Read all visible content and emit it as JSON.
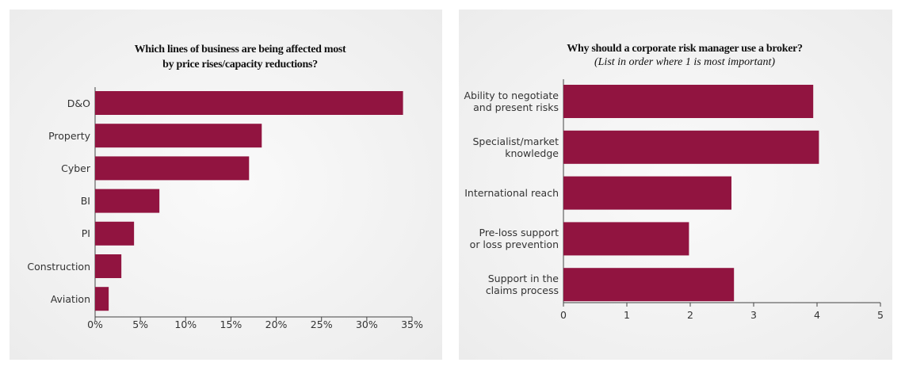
{
  "chart_data": [
    {
      "type": "barh",
      "title": "Which lines of business are being affected most\nby price rises/capacity reductions?",
      "categories": [
        "D&O",
        "Property",
        "Cyber",
        "BI",
        "PI",
        "Construction",
        "Aviation"
      ],
      "values": [
        34,
        18.4,
        17,
        7.1,
        4.3,
        2.9,
        1.5
      ],
      "color": "#911440",
      "xlim": [
        0,
        35
      ],
      "xticks": [
        {
          "value": 0,
          "label": "0%"
        },
        {
          "value": 5,
          "label": "5%"
        },
        {
          "value": 10,
          "label": "10%"
        },
        {
          "value": 15,
          "label": "15%"
        },
        {
          "value": 20,
          "label": "20%"
        },
        {
          "value": 25,
          "label": "25%"
        },
        {
          "value": 30,
          "label": "30%"
        },
        {
          "value": 35,
          "label": "35%"
        }
      ]
    },
    {
      "type": "barh",
      "title": "Why should a corporate risk manager use a broker?",
      "subtitle": "(List in order where 1 is most important)",
      "categories": [
        "Ability to negotiate\nand present risks",
        "Specialist/market\nknowledge",
        "International reach",
        "Pre-loss support\nor loss prevention",
        "Support in the\nclaims process"
      ],
      "values": [
        3.94,
        4.03,
        2.65,
        1.98,
        2.69
      ],
      "color": "#911440",
      "xlim": [
        0,
        5
      ],
      "xticks": [
        0,
        1,
        2,
        3,
        4,
        5
      ]
    }
  ]
}
